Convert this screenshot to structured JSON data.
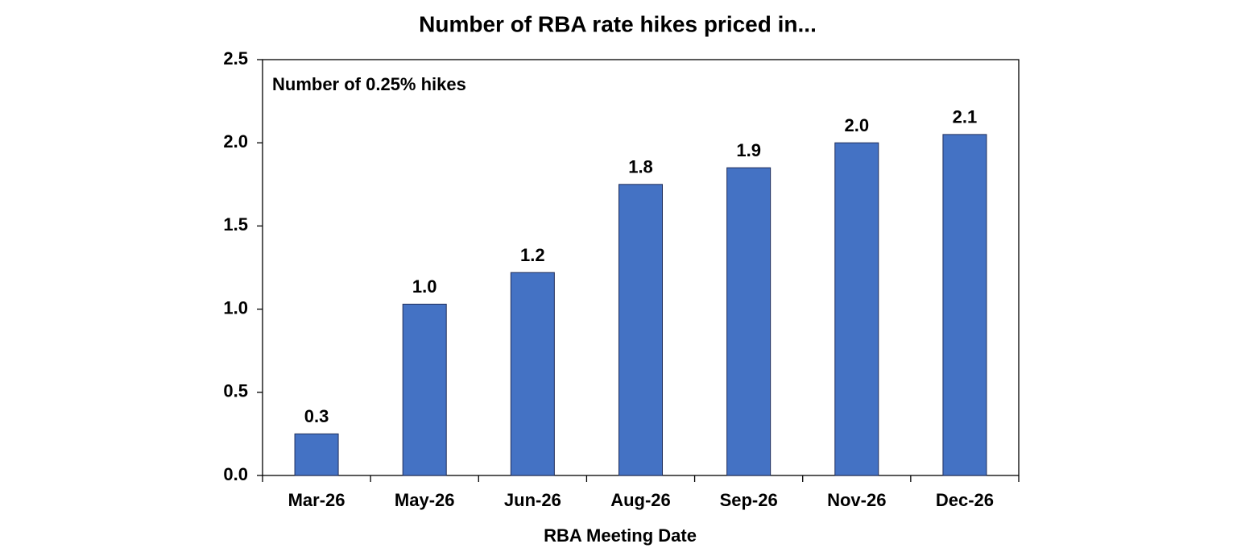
{
  "chart_data": {
    "type": "bar",
    "title": "Number of RBA rate hikes priced in...",
    "annotation": "Number of 0.25% hikes",
    "x_label": "RBA Meeting Date",
    "categories": [
      "Mar-26",
      "May-26",
      "Jun-26",
      "Aug-26",
      "Sep-26",
      "Nov-26",
      "Dec-26"
    ],
    "values": [
      0.25,
      1.03,
      1.22,
      1.75,
      1.85,
      2.0,
      2.05
    ],
    "value_labels": [
      "0.3",
      "1.0",
      "1.2",
      "1.8",
      "1.9",
      "2.0",
      "2.1"
    ],
    "color": "#4472c4",
    "ylim": [
      0,
      2.5
    ],
    "yticks": [
      {
        "value": 0,
        "label": "0.0"
      },
      0.5,
      {
        "value": 1,
        "label": "1.0"
      },
      1.5,
      {
        "value": 2,
        "label": "2.0"
      },
      2.5
    ],
    "grid": false
  }
}
